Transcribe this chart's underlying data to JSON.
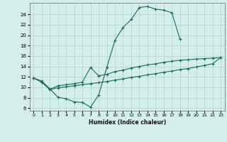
{
  "title": "",
  "xlabel": "Humidex (Indice chaleur)",
  "bg_color": "#d4eeeb",
  "grid_color": "#b8d8d4",
  "line_color": "#1a6b5a",
  "xlim": [
    -0.5,
    23.5
  ],
  "ylim": [
    5.5,
    26.2
  ],
  "xticks": [
    0,
    1,
    2,
    3,
    4,
    5,
    6,
    7,
    8,
    9,
    10,
    11,
    12,
    13,
    14,
    15,
    16,
    17,
    18,
    19,
    20,
    21,
    22,
    23
  ],
  "yticks": [
    6,
    8,
    10,
    12,
    14,
    16,
    18,
    20,
    22,
    24
  ],
  "line1_x": [
    0,
    1,
    2,
    3,
    4,
    5,
    6,
    7,
    8,
    9,
    10,
    11,
    12,
    13,
    14,
    15,
    16,
    17,
    18
  ],
  "line1_y": [
    11.8,
    11.2,
    9.7,
    8.1,
    7.8,
    7.2,
    7.1,
    6.2,
    8.5,
    13.8,
    19.0,
    21.5,
    23.0,
    25.3,
    25.5,
    25.0,
    24.8,
    24.3,
    19.2
  ],
  "line2_x": [
    0,
    1,
    2,
    3,
    4,
    5,
    6,
    7,
    8,
    9,
    10,
    11,
    12,
    13,
    14,
    15,
    16,
    17,
    18,
    19,
    20,
    21,
    22,
    23
  ],
  "line2_y": [
    11.8,
    11.0,
    9.6,
    10.3,
    10.5,
    10.7,
    11.0,
    13.8,
    12.2,
    12.5,
    13.0,
    13.3,
    13.7,
    14.0,
    14.3,
    14.5,
    14.8,
    15.0,
    15.2,
    15.3,
    15.4,
    15.5,
    15.6,
    15.7
  ],
  "line3_x": [
    0,
    1,
    2,
    3,
    4,
    5,
    6,
    7,
    8,
    9,
    10,
    11,
    12,
    13,
    14,
    15,
    16,
    17,
    18,
    19,
    20,
    21,
    22,
    23
  ],
  "line3_y": [
    11.8,
    11.0,
    9.6,
    9.9,
    10.1,
    10.3,
    10.5,
    10.7,
    10.9,
    11.1,
    11.4,
    11.6,
    11.9,
    12.1,
    12.4,
    12.6,
    12.9,
    13.1,
    13.4,
    13.6,
    13.9,
    14.2,
    14.5,
    15.7
  ]
}
